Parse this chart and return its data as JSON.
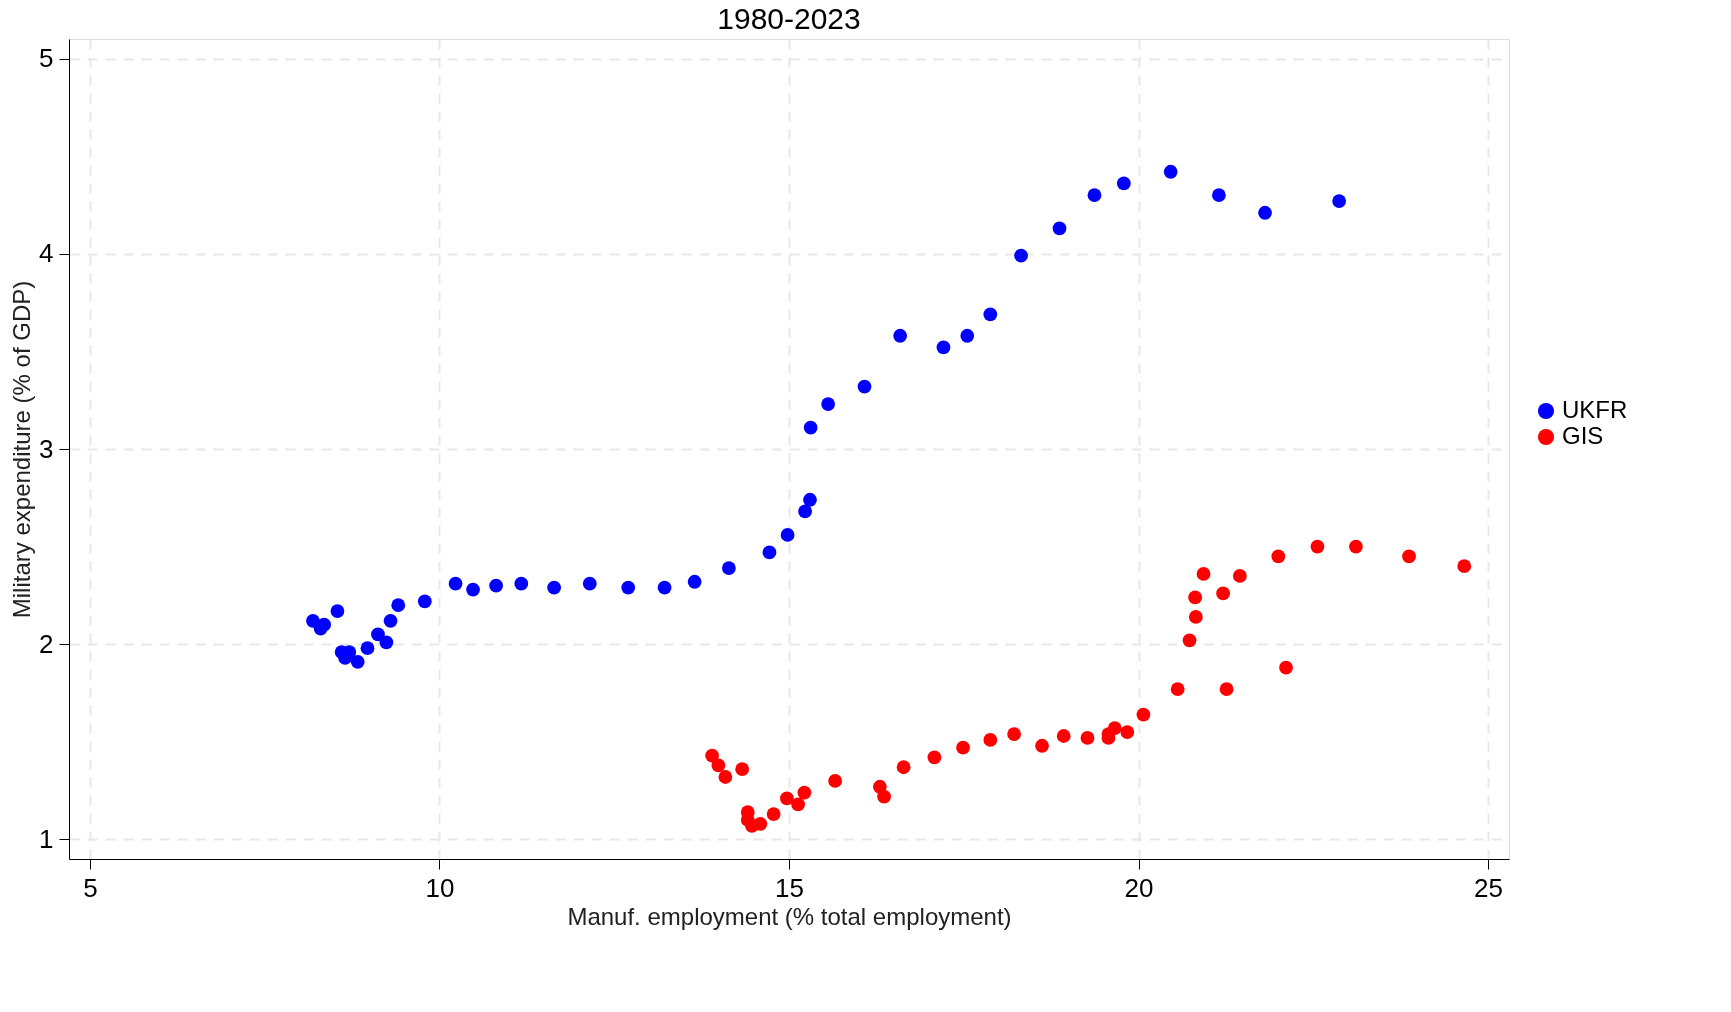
{
  "chart_data": {
    "type": "scatter",
    "title": "1980-2023",
    "xlabel": "Manuf. employment (% total employment)",
    "ylabel": "Military expenditure (% of GDP)",
    "xlim": [
      4.7,
      25.3
    ],
    "ylim": [
      0.9,
      5.1
    ],
    "xticks": [
      5,
      10,
      15,
      20,
      25
    ],
    "yticks": [
      1,
      2,
      3,
      4,
      5
    ],
    "grid": true,
    "legend": "right",
    "marker": "circle",
    "series": [
      {
        "name": "UKFR",
        "color": "#0000ff",
        "x": [
          8.19,
          8.3,
          8.35,
          8.54,
          8.6,
          8.65,
          8.71,
          8.83,
          8.97,
          9.12,
          9.24,
          9.3,
          9.41,
          9.79,
          10.23,
          10.48,
          10.81,
          11.17,
          11.64,
          12.15,
          12.7,
          13.22,
          13.65,
          14.14,
          14.72,
          14.98,
          15.23,
          15.3,
          15.31,
          15.56,
          16.08,
          16.59,
          17.21,
          17.55,
          17.88,
          18.32,
          18.87,
          19.37,
          19.79,
          20.46,
          21.15,
          21.81,
          22.87
        ],
        "values": [
          2.12,
          2.08,
          2.1,
          2.17,
          1.96,
          1.93,
          1.96,
          1.91,
          1.98,
          2.05,
          2.01,
          2.12,
          2.2,
          2.22,
          2.31,
          2.28,
          2.3,
          2.31,
          2.29,
          2.31,
          2.29,
          2.29,
          2.32,
          2.39,
          2.47,
          2.56,
          2.68,
          2.74,
          3.11,
          3.23,
          3.32,
          3.58,
          3.52,
          3.58,
          3.69,
          3.99,
          4.13,
          4.3,
          4.36,
          4.42,
          4.3,
          4.21,
          4.27
        ]
      },
      {
        "name": "GIS",
        "color": "#ff0000",
        "x": [
          13.9,
          13.99,
          14.09,
          14.33,
          14.41,
          14.41,
          14.47,
          14.59,
          14.78,
          14.97,
          15.13,
          15.22,
          15.66,
          16.3,
          16.36,
          16.64,
          17.08,
          17.49,
          17.88,
          18.22,
          18.62,
          18.93,
          19.27,
          19.57,
          19.57,
          19.66,
          19.84,
          20.07,
          20.56,
          21.26,
          22.11,
          20.73,
          20.82,
          20.81,
          20.93,
          21.21,
          21.45,
          22.0,
          22.56,
          23.11,
          23.87,
          24.66
        ],
        "values": [
          1.43,
          1.38,
          1.32,
          1.36,
          1.14,
          1.1,
          1.07,
          1.08,
          1.13,
          1.21,
          1.18,
          1.24,
          1.3,
          1.27,
          1.22,
          1.37,
          1.42,
          1.47,
          1.51,
          1.54,
          1.48,
          1.53,
          1.52,
          1.52,
          1.54,
          1.57,
          1.55,
          1.64,
          1.77,
          1.77,
          1.88,
          2.02,
          2.14,
          2.24,
          2.36,
          2.26,
          2.35,
          2.45,
          2.5,
          2.5,
          2.45,
          2.4
        ]
      }
    ]
  }
}
